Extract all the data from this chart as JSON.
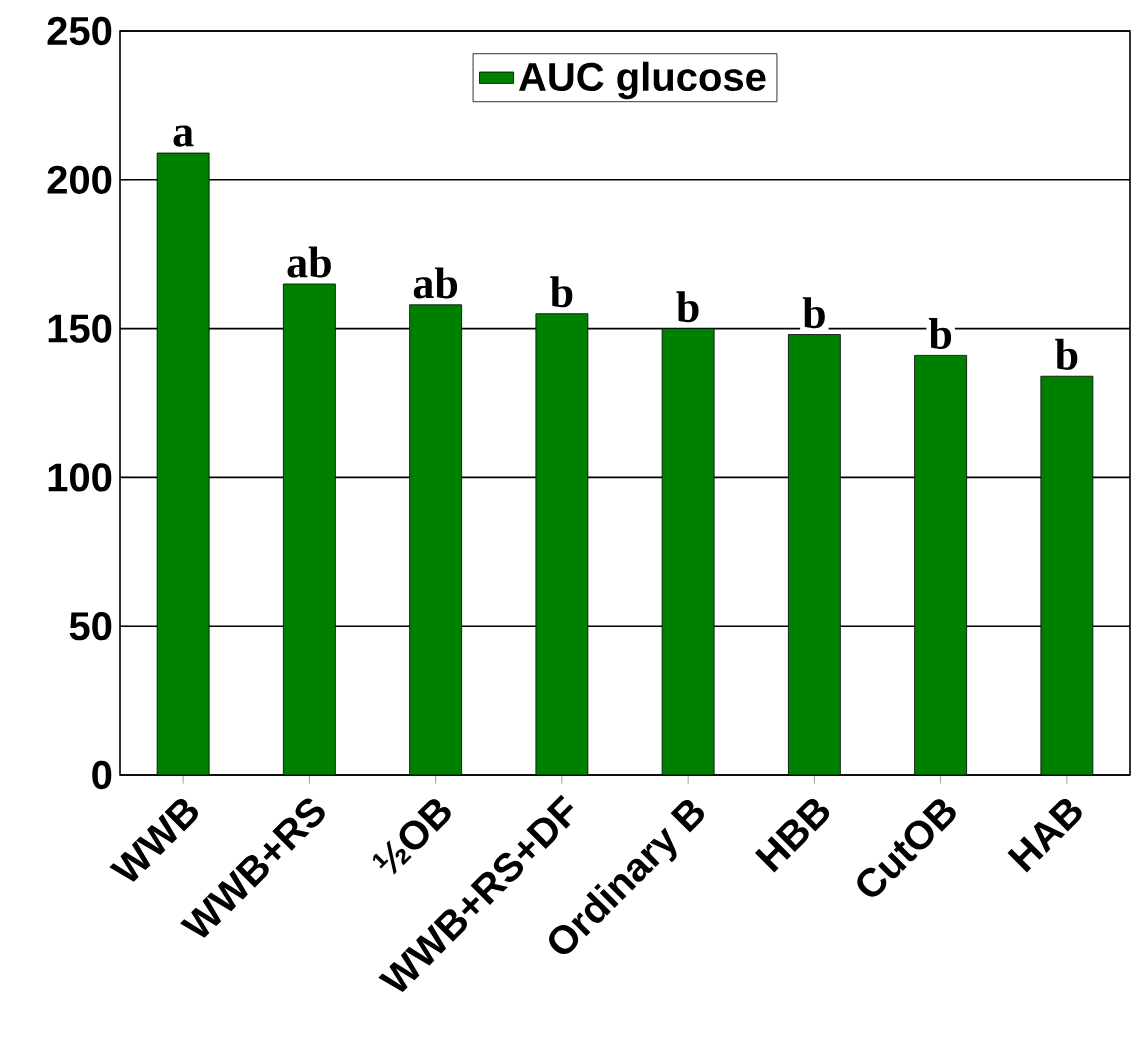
{
  "chart_data": {
    "type": "bar",
    "categories": [
      "WWB",
      "WWB+RS",
      "½OB",
      "WWB+RS+DF",
      "Ordinary B",
      "HBB",
      "CutOB",
      "HAB"
    ],
    "series": [
      {
        "name": "AUC glucose",
        "color": "#008000",
        "values": [
          209,
          165,
          158,
          155,
          150,
          148,
          141,
          134
        ]
      }
    ],
    "ylim": [
      0,
      250
    ],
    "yticks": [
      0,
      50,
      100,
      150,
      200,
      250
    ],
    "grid": "y",
    "legend": "top",
    "annotations": [
      {
        "text": "a",
        "x": "WWB",
        "y": 209
      },
      {
        "text": "ab",
        "x": "WWB+RS",
        "y": 165
      },
      {
        "text": "ab",
        "x": "½OB",
        "y": 158
      },
      {
        "text": "b",
        "x": "WWB+RS+DF",
        "y": 155
      },
      {
        "text": "b",
        "x": "Ordinary B",
        "y": 150
      },
      {
        "text": "b",
        "x": "HBB",
        "y": 148
      },
      {
        "text": "b",
        "x": "CutOB",
        "y": 141
      },
      {
        "text": "b",
        "x": "HAB",
        "y": 134
      }
    ]
  }
}
